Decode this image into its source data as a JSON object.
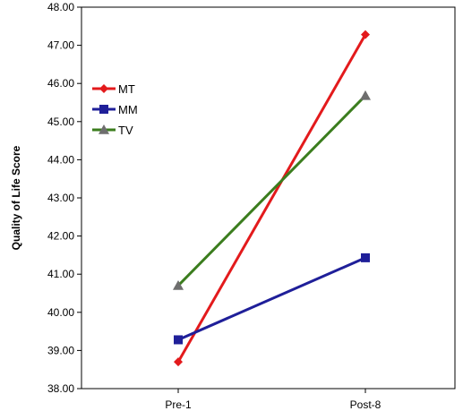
{
  "chart_data": {
    "type": "line",
    "title": "",
    "xlabel": "",
    "ylabel": "Quality of Life Score",
    "categories": [
      "Pre-1",
      "Post-8"
    ],
    "ylim": [
      38,
      48
    ],
    "yticks": [
      "38.00",
      "39.00",
      "40.00",
      "41.00",
      "42.00",
      "43.00",
      "44.00",
      "45.00",
      "46.00",
      "47.00",
      "48.00"
    ],
    "grid": false,
    "legend_position": "top-left",
    "series": [
      {
        "name": "MT",
        "values": [
          38.7,
          47.28
        ],
        "color": "#e31a1c",
        "marker": "diamond"
      },
      {
        "name": "MM",
        "values": [
          39.28,
          41.43
        ],
        "color": "#1f1f99",
        "marker": "square"
      },
      {
        "name": "TV",
        "values": [
          40.7,
          45.68
        ],
        "color": "#3b7d1e",
        "marker": "triangle",
        "marker_color": "#6e6e6e"
      }
    ]
  }
}
